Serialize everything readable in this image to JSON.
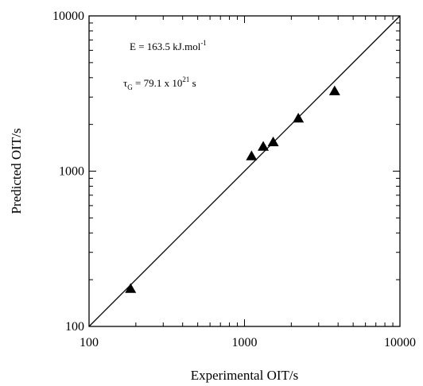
{
  "chart_data": {
    "type": "scatter",
    "title": "",
    "xlabel": "Experimental OIT/s",
    "ylabel": "Predicted OIT/s",
    "xscale": "log",
    "yscale": "log",
    "xlim": [
      100,
      10000
    ],
    "ylim": [
      100,
      10000
    ],
    "x_ticks": [
      100,
      1000,
      10000
    ],
    "y_ticks": [
      100,
      1000,
      10000
    ],
    "x_tick_labels": [
      "100",
      "1000",
      "10000"
    ],
    "y_tick_labels": [
      "100",
      "1000",
      "10000"
    ],
    "grid": false,
    "marker": "triangle",
    "marker_color": "#000000",
    "points": [
      {
        "x": 185,
        "y": 175
      },
      {
        "x": 1110,
        "y": 1250
      },
      {
        "x": 1320,
        "y": 1440
      },
      {
        "x": 1530,
        "y": 1540
      },
      {
        "x": 2220,
        "y": 2190
      },
      {
        "x": 3800,
        "y": 3280
      }
    ],
    "reference_line": {
      "from": [
        100,
        100
      ],
      "to": [
        10000,
        10000
      ]
    },
    "annotations": {
      "energy": {
        "prefix": "E = 163.5 kJ.mol",
        "sup": "-1"
      },
      "tau": {
        "symbol": "τ",
        "sub": "G",
        "middle": " = 79.1 x 10",
        "sup": "21",
        "suffix": " s"
      }
    }
  }
}
